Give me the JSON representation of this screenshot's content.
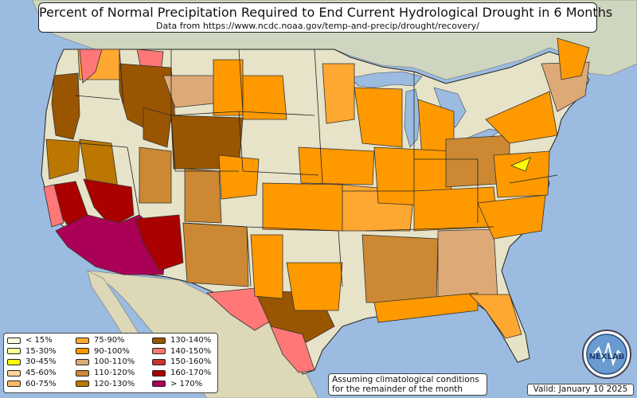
{
  "title": "Percent of Normal Precipitation Required to End Current Hydrological Drought in 6 Months",
  "subtitle": "Data from https://www.ncdc.noaa.gov/temp-and-precip/drought/recovery/",
  "note_line1": "Assuming climatological conditions",
  "note_line2": "for the remainder of the month",
  "valid": "Valid: January 10 2025",
  "logo_text": "NEXLAB",
  "colors": {
    "ocean": "#9bbbe0",
    "land": "#e6e3c8",
    "canada": "#cfd6bf",
    "mexico": "#ddd8b8"
  },
  "legend": [
    {
      "label": "< 15%",
      "color": "#ffffdd"
    },
    {
      "label": "15-30%",
      "color": "#ffff99"
    },
    {
      "label": "30-45%",
      "color": "#ffff00"
    },
    {
      "label": "45-60%",
      "color": "#fdd59a"
    },
    {
      "label": "60-75%",
      "color": "#fdb960"
    },
    {
      "label": "75-90%",
      "color": "#fea832"
    },
    {
      "label": "90-100%",
      "color": "#ff9900"
    },
    {
      "label": "100-110%",
      "color": "#ddaa77"
    },
    {
      "label": "110-120%",
      "color": "#cc8833"
    },
    {
      "label": "120-130%",
      "color": "#bb7700"
    },
    {
      "label": "130-140%",
      "color": "#995500"
    },
    {
      "label": "140-150%",
      "color": "#ff7777"
    },
    {
      "label": "150-160%",
      "color": "#cc3333"
    },
    {
      "label": "160-170%",
      "color": "#aa0000"
    },
    {
      "label": "> 170%",
      "color": "#aa0055"
    }
  ],
  "regions": [
    {
      "name": "oregon-coast",
      "color": "#995500"
    },
    {
      "name": "washington-east",
      "color": "#fea832"
    },
    {
      "name": "washington-north",
      "color": "#ff7777"
    },
    {
      "name": "idaho-north",
      "color": "#ff7777"
    },
    {
      "name": "montana-west",
      "color": "#995500"
    },
    {
      "name": "montana-central",
      "color": "#ddaa77"
    },
    {
      "name": "montana-east",
      "color": "#ff9900"
    },
    {
      "name": "idaho-wyoming",
      "color": "#995500"
    },
    {
      "name": "wyoming",
      "color": "#995500"
    },
    {
      "name": "north-dakota",
      "color": "#ff9900"
    },
    {
      "name": "nevada-north",
      "color": "#bb7700"
    },
    {
      "name": "california-north",
      "color": "#bb7700"
    },
    {
      "name": "california-central",
      "color": "#aa0000"
    },
    {
      "name": "california-coast",
      "color": "#ff7777"
    },
    {
      "name": "nevada-south",
      "color": "#aa0000"
    },
    {
      "name": "southwest",
      "color": "#aa0055"
    },
    {
      "name": "new-mexico-west",
      "color": "#aa0000"
    },
    {
      "name": "utah-east",
      "color": "#cc8833"
    },
    {
      "name": "colorado-west",
      "color": "#cc8833"
    },
    {
      "name": "colorado-east",
      "color": "#ff9900"
    },
    {
      "name": "new-mexico-east",
      "color": "#cc8833"
    },
    {
      "name": "texas-west",
      "color": "#ff7777"
    },
    {
      "name": "texas-central",
      "color": "#995500"
    },
    {
      "name": "texas-south",
      "color": "#ff7777"
    },
    {
      "name": "texas-panhandle",
      "color": "#ff9900"
    },
    {
      "name": "oklahoma-east",
      "color": "#ff9900"
    },
    {
      "name": "kansas",
      "color": "#ff9900"
    },
    {
      "name": "nebraska",
      "color": "#ff9900"
    },
    {
      "name": "iowa-missouri",
      "color": "#fea832"
    },
    {
      "name": "minnesota",
      "color": "#fea832"
    },
    {
      "name": "wisconsin",
      "color": "#ff9900"
    },
    {
      "name": "michigan",
      "color": "#ff9900"
    },
    {
      "name": "illinois-indiana",
      "color": "#ff9900"
    },
    {
      "name": "ohio-pennsylvania",
      "color": "#cc8833"
    },
    {
      "name": "kentucky-tennessee",
      "color": "#ff9900"
    },
    {
      "name": "arkansas-mississippi",
      "color": "#cc8833"
    },
    {
      "name": "alabama-georgia",
      "color": "#ddaa77"
    },
    {
      "name": "louisiana-coast",
      "color": "#ff9900"
    },
    {
      "name": "florida",
      "color": "#fea832"
    },
    {
      "name": "carolinas",
      "color": "#ff9900"
    },
    {
      "name": "virginia",
      "color": "#ff9900"
    },
    {
      "name": "virginia-yellow",
      "color": "#ffff00"
    },
    {
      "name": "new-york",
      "color": "#ff9900"
    },
    {
      "name": "new-england",
      "color": "#ddaa77"
    },
    {
      "name": "maine",
      "color": "#ff9900"
    }
  ]
}
